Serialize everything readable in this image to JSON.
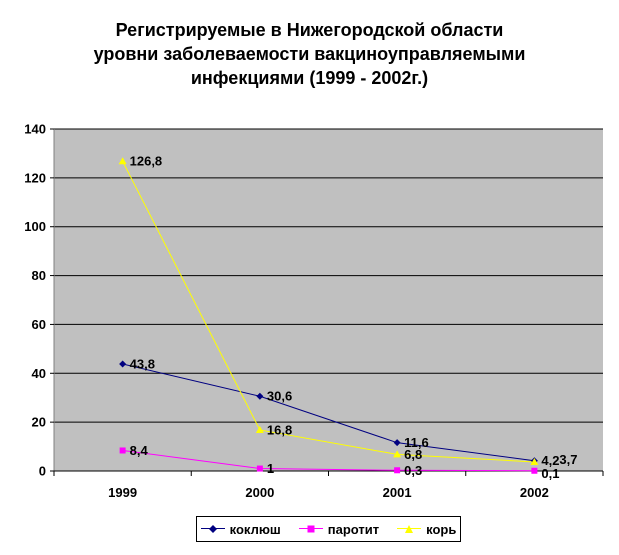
{
  "chart_data": {
    "type": "line",
    "title": [
      "Регистрируемые в Нижегородской области",
      "уровни заболеваемости вакциноуправляемыми",
      "инфекциями (1999 - 2002г.)"
    ],
    "xlabel": "",
    "ylabel": "",
    "categories": [
      "1999",
      "2000",
      "2001",
      "2002"
    ],
    "ylim": [
      0,
      140
    ],
    "yticks": [
      0,
      20,
      40,
      60,
      80,
      100,
      120,
      140
    ],
    "grid": true,
    "legend": "bottom",
    "series": [
      {
        "name": "коклюш",
        "values": [
          43.8,
          30.6,
          11.6,
          4.2
        ],
        "labels": [
          "43,8",
          "30,6",
          "11,6",
          "4,2"
        ],
        "color": "#000080",
        "marker": "diamond"
      },
      {
        "name": "паротит",
        "values": [
          8.4,
          1,
          0.3,
          0.1
        ],
        "labels": [
          "8,4",
          "1",
          "0,3",
          "0,1"
        ],
        "color": "#FF00FF",
        "marker": "square"
      },
      {
        "name": "корь",
        "values": [
          126.8,
          16.8,
          6.8,
          3.7
        ],
        "labels": [
          "126,8",
          "16,8",
          "6,8",
          "3,7"
        ],
        "color": "#FFFF00",
        "marker": "triangle"
      }
    ],
    "plot_background": "#C0C0C0"
  }
}
